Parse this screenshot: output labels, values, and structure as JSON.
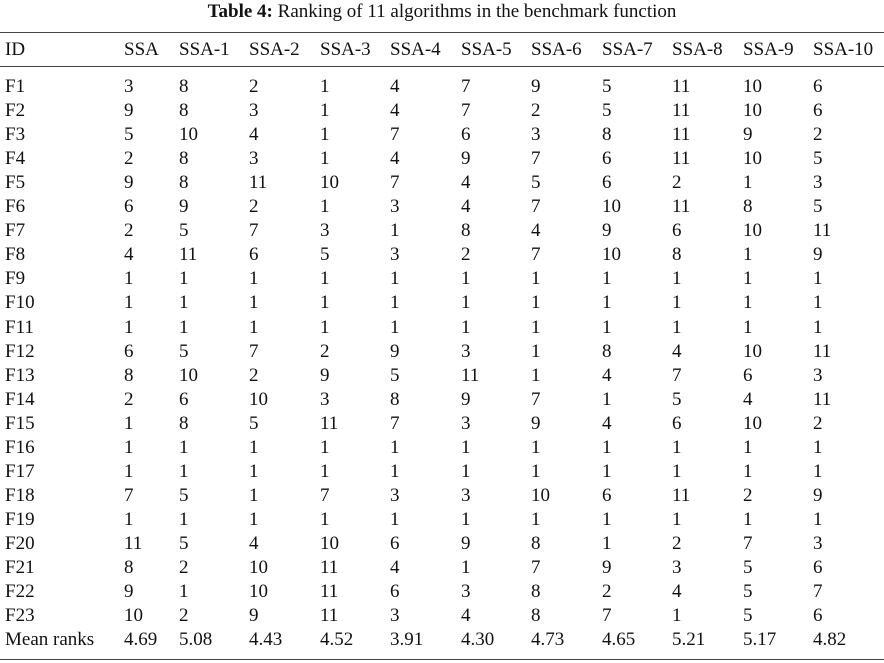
{
  "title": {
    "label": "Table 4:",
    "text": "Ranking of 11 algorithms in the benchmark function"
  },
  "table": {
    "header": [
      "ID",
      "SSA",
      "SSA-1",
      "SSA-2",
      "SSA-3",
      "SSA-4",
      "SSA-5",
      "SSA-6",
      "SSA-7",
      "SSA-8",
      "SSA-9",
      "SSA-10"
    ],
    "rows": [
      [
        "F1",
        3,
        8,
        2,
        1,
        4,
        7,
        9,
        5,
        11,
        10,
        6
      ],
      [
        "F2",
        9,
        8,
        3,
        1,
        4,
        7,
        2,
        5,
        11,
        10,
        6
      ],
      [
        "F3",
        5,
        10,
        4,
        1,
        7,
        6,
        3,
        8,
        11,
        9,
        2
      ],
      [
        "F4",
        2,
        8,
        3,
        1,
        4,
        9,
        7,
        6,
        11,
        10,
        5
      ],
      [
        "F5",
        9,
        8,
        11,
        10,
        7,
        4,
        5,
        6,
        2,
        1,
        3
      ],
      [
        "F6",
        6,
        9,
        2,
        1,
        3,
        4,
        7,
        10,
        11,
        8,
        5
      ],
      [
        "F7",
        2,
        5,
        7,
        3,
        1,
        8,
        4,
        9,
        6,
        10,
        11
      ],
      [
        "F8",
        4,
        11,
        6,
        5,
        3,
        2,
        7,
        10,
        8,
        1,
        9
      ],
      [
        "F9",
        1,
        1,
        1,
        1,
        1,
        1,
        1,
        1,
        1,
        1,
        1
      ],
      [
        "F10",
        1,
        1,
        1,
        1,
        1,
        1,
        1,
        1,
        1,
        1,
        1
      ],
      [
        "F11",
        1,
        1,
        1,
        1,
        1,
        1,
        1,
        1,
        1,
        1,
        1
      ],
      [
        "F12",
        6,
        5,
        7,
        2,
        9,
        3,
        1,
        8,
        4,
        10,
        11
      ],
      [
        "F13",
        8,
        10,
        2,
        9,
        5,
        11,
        1,
        4,
        7,
        6,
        3
      ],
      [
        "F14",
        2,
        6,
        10,
        3,
        8,
        9,
        7,
        1,
        5,
        4,
        11
      ],
      [
        "F15",
        1,
        8,
        5,
        11,
        7,
        3,
        9,
        4,
        6,
        10,
        2
      ],
      [
        "F16",
        1,
        1,
        1,
        1,
        1,
        1,
        1,
        1,
        1,
        1,
        1
      ],
      [
        "F17",
        1,
        1,
        1,
        1,
        1,
        1,
        1,
        1,
        1,
        1,
        1
      ],
      [
        "F18",
        7,
        5,
        1,
        7,
        3,
        3,
        10,
        6,
        11,
        2,
        9
      ],
      [
        "F19",
        1,
        1,
        1,
        1,
        1,
        1,
        1,
        1,
        1,
        1,
        1
      ],
      [
        "F20",
        11,
        5,
        4,
        10,
        6,
        9,
        8,
        1,
        2,
        7,
        3
      ],
      [
        "F21",
        8,
        2,
        10,
        11,
        4,
        1,
        7,
        9,
        3,
        5,
        6
      ],
      [
        "F22",
        9,
        1,
        10,
        11,
        6,
        3,
        8,
        2,
        4,
        5,
        7
      ],
      [
        "F23",
        10,
        2,
        9,
        11,
        3,
        4,
        8,
        7,
        1,
        5,
        6
      ],
      [
        "Mean ranks",
        "4.69",
        "5.08",
        "4.43",
        "4.52",
        "3.91",
        "4.30",
        "4.73",
        "4.65",
        "5.21",
        "5.17",
        "4.82"
      ]
    ]
  }
}
